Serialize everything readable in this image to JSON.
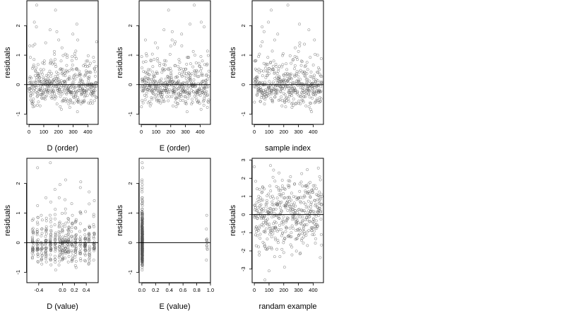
{
  "chart_data": [
    {
      "type": "scatter",
      "xlabel": "D (order)",
      "ylabel": "residuals",
      "xlim": [
        -15,
        470
      ],
      "ylim": [
        -1.35,
        2.85
      ],
      "xticks": [
        0,
        100,
        200,
        300,
        400
      ],
      "xtick_labels": [
        "0",
        "100",
        "200",
        "300",
        "400"
      ],
      "yticks": [
        -1,
        0,
        1,
        2
      ],
      "ytick_labels": [
        "-1",
        "0",
        "1",
        "2"
      ],
      "reference_line": 0,
      "series": [
        {
          "x": [],
          "y": []
        }
      ]
    },
    {
      "type": "scatter",
      "xlabel": "E (order)",
      "ylabel": "residuals",
      "xlim": [
        -15,
        470
      ],
      "ylim": [
        -1.35,
        2.85
      ],
      "xticks": [
        0,
        100,
        200,
        300,
        400
      ],
      "xtick_labels": [
        "0",
        "100",
        "200",
        "300",
        "400"
      ],
      "yticks": [
        -1,
        0,
        1,
        2
      ],
      "ytick_labels": [
        "-1",
        "0",
        "1",
        "2"
      ],
      "reference_line": 0,
      "series": [
        {
          "x": [],
          "y": []
        }
      ]
    },
    {
      "type": "scatter",
      "xlabel": "sample index",
      "ylabel": "residuals",
      "xlim": [
        -15,
        470
      ],
      "ylim": [
        -1.35,
        2.85
      ],
      "xticks": [
        0,
        100,
        200,
        300,
        400
      ],
      "xtick_labels": [
        "0",
        "100",
        "200",
        "300",
        "400"
      ],
      "yticks": [
        -1,
        0,
        1,
        2
      ],
      "ytick_labels": [
        "-1",
        "0",
        "1",
        "2"
      ],
      "reference_line": 0,
      "series": [
        {
          "x": [],
          "y": []
        }
      ]
    },
    {
      "type": "scatter",
      "xlabel": "D (value)",
      "ylabel": "residuals",
      "xlim": [
        -0.6,
        0.6
      ],
      "ylim": [
        -1.35,
        2.85
      ],
      "xticks": [
        -0.4,
        0.0,
        0.2,
        0.4
      ],
      "xtick_labels": [
        "-0.4",
        "0.0",
        "0.2",
        "0.4"
      ],
      "yticks": [
        -1,
        0,
        1,
        2
      ],
      "ytick_labels": [
        "-1",
        "0",
        "1",
        "2"
      ],
      "reference_line": 0,
      "series": [
        {
          "x": [],
          "y": []
        }
      ]
    },
    {
      "type": "scatter",
      "xlabel": "E (value)",
      "ylabel": "residuals",
      "xlim": [
        -0.04,
        1.0
      ],
      "ylim": [
        -1.35,
        2.85
      ],
      "xticks": [
        0.0,
        0.2,
        0.4,
        0.6,
        0.8,
        1.0
      ],
      "xtick_labels": [
        "0.0",
        "0.2",
        "0.4",
        "0.6",
        "0.8",
        "1.0"
      ],
      "yticks": [
        -1,
        0,
        1,
        2
      ],
      "ytick_labels": [
        "-1",
        "0",
        "1",
        "2"
      ],
      "reference_line": 0,
      "series": [
        {
          "x": [],
          "y": []
        }
      ]
    },
    {
      "type": "scatter",
      "xlabel": "randam example",
      "ylabel": "residuals",
      "xlim": [
        -15,
        470
      ],
      "ylim": [
        -3.75,
        3.1
      ],
      "xticks": [
        0,
        100,
        200,
        300,
        400
      ],
      "xtick_labels": [
        "0",
        "100",
        "200",
        "300",
        "400"
      ],
      "yticks": [
        -3,
        -2,
        -1,
        0,
        1,
        2,
        3
      ],
      "ytick_labels": [
        "-3",
        "-2",
        "-1",
        "0",
        "1",
        "2",
        "3"
      ],
      "reference_line": 0,
      "series": [
        {
          "x": [],
          "y": []
        }
      ]
    }
  ]
}
